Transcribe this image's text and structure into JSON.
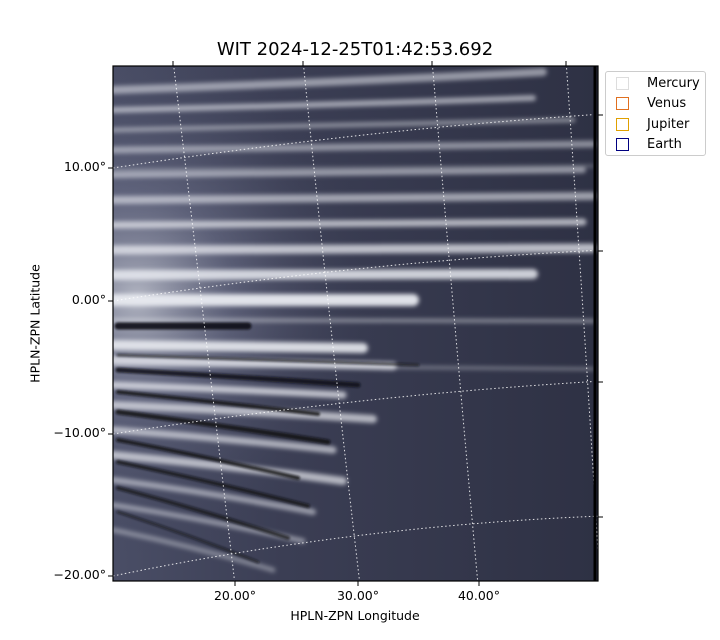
{
  "title": "WIT 2024-12-25T01:42:53.692",
  "xlabel": "HPLN-ZPN Longitude",
  "ylabel": "HPLN-ZPN Latitude",
  "x_ticks": [
    "20.00°",
    "30.00°",
    "40.00°"
  ],
  "y_ticks": [
    "10.00°",
    "0.00°",
    "−10.00°",
    "−20.00°"
  ],
  "legend": [
    {
      "label": "Mercury",
      "color": "#dddddd"
    },
    {
      "label": "Venus",
      "color": "#e07020"
    },
    {
      "label": "Jupiter",
      "color": "#e0a000"
    },
    {
      "label": "Earth",
      "color": "#000080"
    }
  ],
  "colors": {
    "background_sky": "#3a3d52",
    "streamer_bright": "#e8eaf0",
    "grid": "#ffffff"
  }
}
